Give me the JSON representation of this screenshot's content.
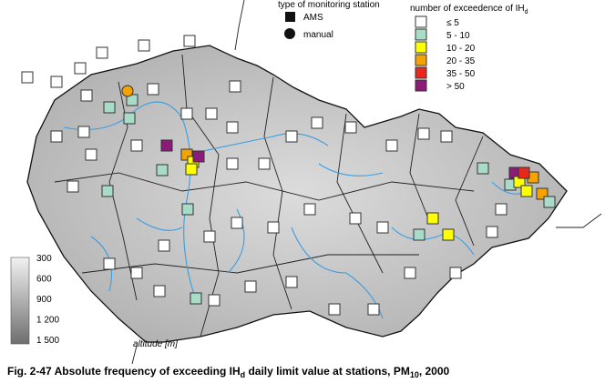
{
  "legend_station_type": {
    "title": "type of monitoring station",
    "items": [
      "AMS",
      "manual"
    ]
  },
  "legend_exceedance": {
    "title": "number of exceedence of IH",
    "title_sub": "d",
    "items": [
      "≤ 5",
      "5 - 10",
      "10 - 20",
      "20 - 35",
      "35 - 50",
      "> 50"
    ]
  },
  "altitude_scale": {
    "labels": [
      "300",
      "600",
      "900",
      "1 200",
      "1 500"
    ],
    "unit": "altitude [m]"
  },
  "caption": {
    "part1": "Fig. 2-47  Absolute frequency of exceeding IH",
    "sub1": "d",
    "part2": " daily limit value at stations, PM",
    "sub2": "10",
    "part3": ", 2000"
  }
}
